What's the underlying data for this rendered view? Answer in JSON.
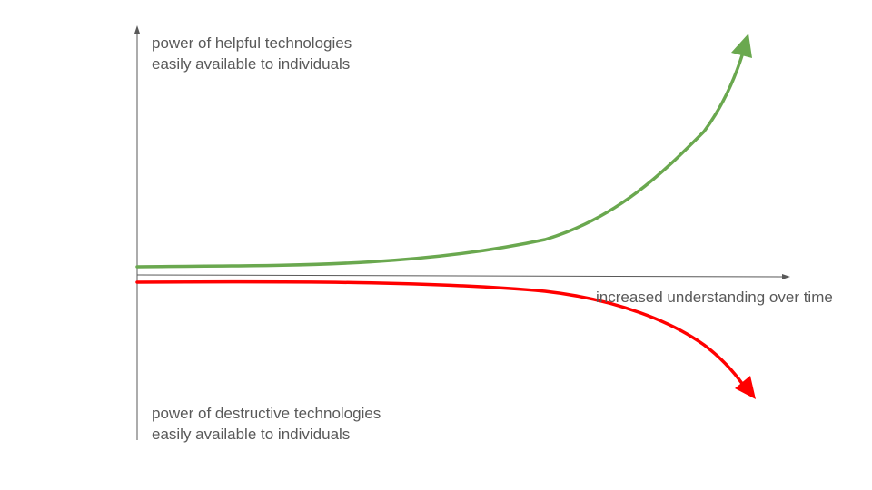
{
  "diagram": {
    "top_label": {
      "line1": "power of helpful technologies",
      "line2": "easily available to individuals"
    },
    "bottom_label": {
      "line1": "power of destructive technologies",
      "line2": "easily available to individuals"
    },
    "x_axis_label": "increased understanding over time",
    "colors": {
      "axis": "#595959",
      "text": "#595959",
      "helpful_curve": "#6aa84f",
      "destructive_curve": "#ff0000"
    }
  }
}
